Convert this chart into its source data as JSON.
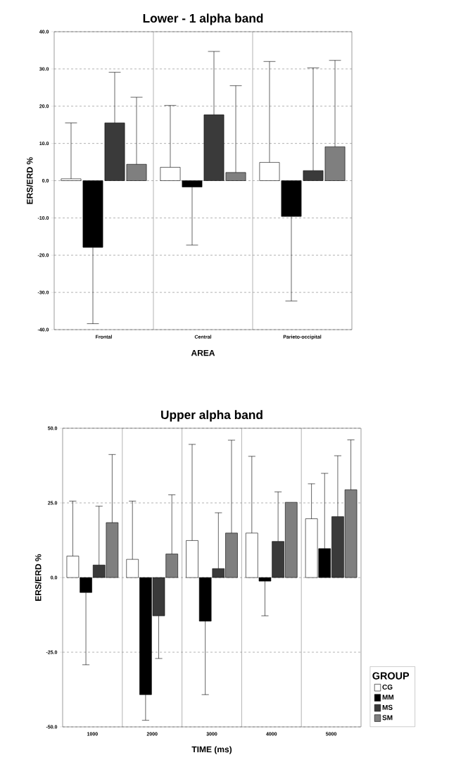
{
  "chart_data": [
    {
      "type": "bar",
      "title": "Lower - 1 alpha band",
      "xlabel": "AREA",
      "ylabel": "ERS/ERD  %",
      "categories": [
        "Frontal",
        "Central",
        "Parieto-occipital"
      ],
      "series": [
        {
          "color": "#ffffff",
          "values": [
            0.5,
            3.6,
            4.9
          ],
          "errors": [
            [
              0.5,
              15.5
            ],
            [
              3.6,
              20.2
            ],
            [
              4.9,
              32.0
            ]
          ]
        },
        {
          "color": "#000000",
          "values": [
            -17.9,
            -1.7,
            -9.6
          ],
          "errors": [
            [
              -38.4,
              -17.9
            ],
            [
              -17.3,
              -1.7
            ],
            [
              -32.3,
              -9.6
            ]
          ]
        },
        {
          "color": "#3a3a3a",
          "values": [
            15.5,
            17.7,
            2.7
          ],
          "errors": [
            [
              15.5,
              29.1
            ],
            [
              17.7,
              34.7
            ],
            [
              2.7,
              30.3
            ]
          ]
        },
        {
          "color": "#7f7f7f",
          "values": [
            4.4,
            2.2,
            9.1
          ],
          "errors": [
            [
              4.4,
              22.4
            ],
            [
              2.2,
              25.5
            ],
            [
              9.1,
              32.3
            ]
          ]
        }
      ],
      "ylim": [
        -40,
        40
      ],
      "yticks": [
        {
          "value": -40,
          "label": "-40.0"
        },
        {
          "value": -30,
          "label": "-30.0"
        },
        {
          "value": -20,
          "label": "-20.0"
        },
        {
          "value": -10,
          "label": "-10.0"
        },
        {
          "value": 0,
          "label": "0.0"
        },
        {
          "value": 10,
          "label": "10.0"
        },
        {
          "value": 20,
          "label": "20.0"
        },
        {
          "value": 30,
          "label": "30.0"
        },
        {
          "value": 40,
          "label": "40.0"
        }
      ],
      "grid": "y",
      "legend": false
    },
    {
      "type": "bar",
      "title": "Upper alpha band",
      "xlabel": "TIME (ms)",
      "ylabel": "ERS/ERD  %",
      "legend_title": "GROUP",
      "categories": [
        "1000",
        "2000",
        "3000",
        "4000",
        "5000"
      ],
      "series": [
        {
          "name": "CG",
          "color": "#ffffff",
          "values": [
            7.2,
            6.1,
            12.4,
            14.9,
            19.7
          ],
          "errors": [
            [
              7.2,
              25.6
            ],
            [
              6.1,
              25.6
            ],
            [
              12.4,
              44.6
            ],
            [
              14.9,
              40.6
            ],
            [
              19.7,
              31.4
            ]
          ]
        },
        {
          "name": "MM",
          "color": "#000000",
          "values": [
            -5.0,
            -39.2,
            -14.6,
            -1.2,
            9.7
          ],
          "errors": [
            [
              -29.2,
              -5.0
            ],
            [
              -47.8,
              -39.2
            ],
            [
              -39.2,
              -14.6
            ],
            [
              -12.8,
              -1.2
            ],
            [
              9.7,
              34.9
            ]
          ]
        },
        {
          "name": "MS",
          "color": "#3a3a3a",
          "values": [
            4.2,
            -12.8,
            3.0,
            12.1,
            20.4
          ],
          "errors": [
            [
              4.2,
              23.9
            ],
            [
              -27.1,
              -12.8
            ],
            [
              3.0,
              21.7
            ],
            [
              12.1,
              28.7
            ],
            [
              20.4,
              40.8
            ]
          ]
        },
        {
          "name": "SM",
          "color": "#7f7f7f",
          "values": [
            18.4,
            7.9,
            14.9,
            25.2,
            29.4
          ],
          "errors": [
            [
              18.4,
              41.2
            ],
            [
              7.9,
              27.7
            ],
            [
              14.9,
              46.0
            ],
            null,
            [
              29.4,
              46.1
            ]
          ]
        }
      ],
      "ylim": [
        -50,
        50
      ],
      "yticks": [
        {
          "value": -50,
          "label": "-50.0"
        },
        {
          "value": -25,
          "label": "-25.0"
        },
        {
          "value": 0,
          "label": "0.0"
        },
        {
          "value": 25,
          "label": "25.0"
        },
        {
          "value": 50,
          "label": "50.0"
        }
      ],
      "grid": "y",
      "legend": "right"
    }
  ]
}
